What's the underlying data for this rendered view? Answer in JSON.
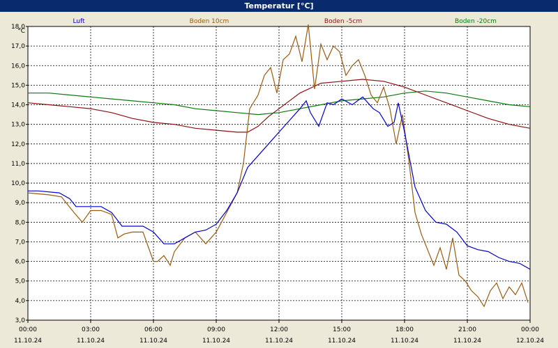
{
  "window": {
    "title": "Temperatur [°C]"
  },
  "chart_data": {
    "type": "line",
    "unit_label": "°C",
    "ylim": [
      3.0,
      18.0
    ],
    "yticks": [
      "3,0",
      "4,0",
      "5,0",
      "6,0",
      "7,0",
      "8,0",
      "9,0",
      "10,0",
      "11,0",
      "12,0",
      "13,0",
      "14,0",
      "15,0",
      "16,0",
      "17,0",
      "18,0"
    ],
    "xlim": [
      0,
      24
    ],
    "xticks": [
      {
        "time": "00:00",
        "date": "11.10.24"
      },
      {
        "time": "03:00",
        "date": "11.10.24"
      },
      {
        "time": "06:00",
        "date": "11.10.24"
      },
      {
        "time": "09:00",
        "date": "11.10.24"
      },
      {
        "time": "12:00",
        "date": "11.10.24"
      },
      {
        "time": "15:00",
        "date": "11.10.24"
      },
      {
        "time": "18:00",
        "date": "11.10.24"
      },
      {
        "time": "21:00",
        "date": "11.10.24"
      },
      {
        "time": "00:00",
        "date": "12.10.24"
      }
    ],
    "grid": true,
    "legend_position": "top",
    "series": [
      {
        "name": "Luft",
        "color": "#0000cc",
        "x": [
          0,
          0.5,
          1.5,
          2.0,
          2.3,
          3.0,
          3.5,
          4.0,
          4.5,
          5.0,
          5.5,
          6.0,
          6.5,
          7.0,
          7.5,
          8.0,
          8.5,
          9.0,
          9.5,
          10.0,
          10.5,
          11.0,
          11.5,
          12.0,
          12.5,
          13.0,
          13.3,
          13.5,
          13.9,
          14.3,
          14.6,
          15.0,
          15.5,
          16.0,
          16.5,
          16.8,
          17.2,
          17.5,
          17.7,
          18.0,
          18.5,
          19.0,
          19.5,
          20.0,
          20.5,
          21.0,
          21.5,
          22.0,
          22.5,
          23.0,
          23.5,
          24.0
        ],
        "y": [
          9.6,
          9.6,
          9.5,
          9.2,
          8.8,
          8.8,
          8.8,
          8.5,
          7.8,
          7.8,
          7.8,
          7.5,
          6.9,
          6.9,
          7.2,
          7.5,
          7.6,
          7.9,
          8.6,
          9.5,
          10.8,
          11.4,
          12.0,
          12.6,
          13.2,
          13.8,
          14.2,
          13.6,
          12.9,
          14.1,
          14.0,
          14.3,
          14.0,
          14.4,
          13.8,
          13.6,
          12.9,
          13.1,
          14.1,
          12.6,
          9.8,
          8.6,
          8.0,
          7.9,
          7.5,
          6.8,
          6.6,
          6.5,
          6.2,
          6.0,
          5.9,
          5.6
        ]
      },
      {
        "name": "Boden 10cm",
        "color": "#9a5a10",
        "x": [
          0,
          1.0,
          1.6,
          2.2,
          2.6,
          3.0,
          3.5,
          4.0,
          4.3,
          4.6,
          5.0,
          5.5,
          6.0,
          6.2,
          6.5,
          6.8,
          7.0,
          7.5,
          8.0,
          8.5,
          9.0,
          9.5,
          10.0,
          10.3,
          10.6,
          11.0,
          11.3,
          11.6,
          11.9,
          12.2,
          12.5,
          12.8,
          13.1,
          13.4,
          13.7,
          14.0,
          14.3,
          14.6,
          14.9,
          15.2,
          15.5,
          15.8,
          16.1,
          16.4,
          16.7,
          17.0,
          17.3,
          17.6,
          17.9,
          18.2,
          18.5,
          18.8,
          19.1,
          19.4,
          19.7,
          20.0,
          20.3,
          20.6,
          20.9,
          21.2,
          21.5,
          21.8,
          22.1,
          22.4,
          22.7,
          23.0,
          23.3,
          23.6,
          23.9
        ],
        "y": [
          9.5,
          9.4,
          9.3,
          8.5,
          8.0,
          8.6,
          8.6,
          8.4,
          7.2,
          7.4,
          7.5,
          7.5,
          6.0,
          6.0,
          6.3,
          5.8,
          6.5,
          7.2,
          7.5,
          6.9,
          7.5,
          8.5,
          9.5,
          11.0,
          13.8,
          14.5,
          15.5,
          15.9,
          14.6,
          16.3,
          16.6,
          17.5,
          16.2,
          18.1,
          14.8,
          17.1,
          16.3,
          17.0,
          16.7,
          15.5,
          16.0,
          16.3,
          15.5,
          14.5,
          14.1,
          14.9,
          13.8,
          12.0,
          13.5,
          11.2,
          8.5,
          7.4,
          6.6,
          5.8,
          6.7,
          5.6,
          7.2,
          5.3,
          5.0,
          4.5,
          4.2,
          3.7,
          4.5,
          4.9,
          4.1,
          4.7,
          4.3,
          4.9,
          3.9
        ]
      },
      {
        "name": "Boden -5cm",
        "color": "#8c1010",
        "x": [
          0,
          1,
          2,
          3,
          4,
          5,
          6,
          7,
          8,
          9,
          10,
          10.5,
          11,
          11.5,
          12,
          13,
          14,
          15,
          16,
          17,
          18,
          19,
          20,
          21,
          22,
          23,
          24
        ],
        "y": [
          14.1,
          14.0,
          13.9,
          13.8,
          13.6,
          13.3,
          13.1,
          13.0,
          12.8,
          12.7,
          12.6,
          12.6,
          12.9,
          13.4,
          13.8,
          14.6,
          15.1,
          15.2,
          15.3,
          15.2,
          14.9,
          14.5,
          14.1,
          13.7,
          13.3,
          13.0,
          12.8
        ]
      },
      {
        "name": "Boden -20cm",
        "color": "#0a7a0a",
        "x": [
          0,
          1,
          2,
          3,
          4,
          5,
          6,
          7,
          8,
          9,
          10,
          11,
          12,
          13,
          14,
          15,
          16,
          17,
          18,
          19,
          20,
          21,
          22,
          23,
          24
        ],
        "y": [
          14.6,
          14.6,
          14.5,
          14.4,
          14.3,
          14.2,
          14.1,
          14.0,
          13.8,
          13.7,
          13.6,
          13.5,
          13.6,
          13.8,
          14.0,
          14.2,
          14.3,
          14.4,
          14.6,
          14.7,
          14.6,
          14.4,
          14.2,
          14.0,
          13.9
        ]
      }
    ]
  }
}
